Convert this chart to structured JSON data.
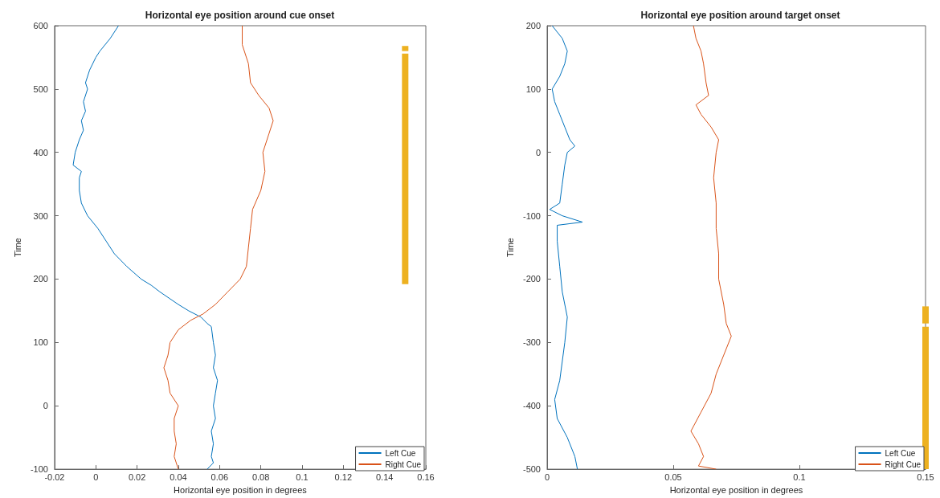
{
  "chart_data": [
    {
      "type": "line",
      "title": "Horizontal eye position around cue onset",
      "xlabel": "Horizontal eye position in degrees",
      "ylabel": "Time",
      "xlim": [
        -0.02,
        0.16
      ],
      "xticks": [
        -0.02,
        0,
        0.02,
        0.04,
        0.06,
        0.08,
        0.1,
        0.12,
        0.14,
        0.16
      ],
      "ylim": [
        -100,
        600
      ],
      "yticks": [
        -100,
        0,
        100,
        200,
        300,
        400,
        500,
        600
      ],
      "grid": false,
      "legend": "bottom right",
      "marker": "none",
      "line_style": "solid",
      "series": [
        {
          "name": "Left Cue",
          "color": "#0072bd",
          "x": [
            0.011,
            0.007,
            0.002,
            0.0,
            -0.003,
            -0.005,
            -0.004,
            -0.006,
            -0.005,
            -0.007,
            -0.006,
            -0.008,
            -0.01,
            -0.011,
            -0.007,
            -0.008,
            -0.008,
            -0.007,
            -0.004,
            0.001,
            0.005,
            0.009,
            0.015,
            0.022,
            0.027,
            0.031,
            0.04,
            0.045,
            0.051,
            0.054,
            0.056,
            0.057,
            0.058,
            0.057,
            0.059,
            0.058,
            0.057,
            0.058,
            0.056,
            0.057,
            0.056,
            0.057,
            0.054
          ],
          "values": [
            600,
            580,
            560,
            550,
            530,
            510,
            500,
            480,
            465,
            450,
            435,
            420,
            400,
            380,
            370,
            360,
            340,
            320,
            300,
            280,
            260,
            240,
            220,
            200,
            190,
            180,
            160,
            150,
            140,
            130,
            125,
            100,
            80,
            60,
            40,
            20,
            0,
            -20,
            -40,
            -60,
            -80,
            -90,
            -100
          ]
        },
        {
          "name": "Right Cue",
          "color": "#d95319",
          "x": [
            0.071,
            0.071,
            0.074,
            0.075,
            0.079,
            0.084,
            0.086,
            0.084,
            0.081,
            0.082,
            0.08,
            0.076,
            0.075,
            0.074,
            0.073,
            0.07,
            0.064,
            0.058,
            0.052,
            0.046,
            0.04,
            0.036,
            0.035,
            0.033,
            0.035,
            0.036,
            0.04,
            0.038,
            0.038,
            0.039,
            0.038,
            0.04
          ],
          "values": [
            600,
            570,
            540,
            510,
            490,
            470,
            450,
            430,
            400,
            370,
            340,
            310,
            280,
            250,
            220,
            200,
            180,
            160,
            145,
            135,
            120,
            100,
            80,
            60,
            40,
            20,
            0,
            -20,
            -40,
            -60,
            -80,
            -100
          ]
        },
        {
          "color": "#edb120",
          "x": [
            0.15,
            0.15
          ],
          "values": [
            192,
            556
          ]
        },
        {
          "color": "#edb120",
          "x": [
            0.15,
            0.15
          ],
          "values": [
            560,
            568
          ]
        }
      ]
    },
    {
      "type": "line",
      "title": "Horizontal eye position around target onset",
      "xlabel": "Horizontal eye position in degrees",
      "ylabel": "Time",
      "xlim": [
        0,
        0.15
      ],
      "xticks": [
        0,
        0.05,
        0.1,
        0.15
      ],
      "ylim": [
        -500,
        200
      ],
      "yticks": [
        -500,
        -400,
        -300,
        -200,
        -100,
        0,
        100,
        200
      ],
      "grid": false,
      "legend": "bottom right",
      "marker": "none",
      "line_style": "solid",
      "series": [
        {
          "name": "Left Cue",
          "color": "#0072bd",
          "x": [
            0.002,
            0.006,
            0.008,
            0.007,
            0.005,
            0.002,
            0.003,
            0.005,
            0.007,
            0.009,
            0.011,
            0.008,
            0.007,
            0.006,
            0.005,
            0.001,
            0.006,
            0.014,
            0.004,
            0.004,
            0.005,
            0.006,
            0.008,
            0.007,
            0.006,
            0.005,
            0.003,
            0.004,
            0.008,
            0.011,
            0.012
          ],
          "values": [
            200,
            180,
            160,
            140,
            120,
            100,
            80,
            60,
            40,
            20,
            10,
            0,
            -20,
            -50,
            -80,
            -90,
            -100,
            -110,
            -115,
            -140,
            -180,
            -220,
            -260,
            -300,
            -330,
            -360,
            -390,
            -420,
            -450,
            -480,
            -500
          ]
        },
        {
          "name": "Right Cue",
          "color": "#d95319",
          "x": [
            0.058,
            0.059,
            0.061,
            0.062,
            0.063,
            0.064,
            0.059,
            0.061,
            0.065,
            0.068,
            0.067,
            0.066,
            0.067,
            0.067,
            0.068,
            0.068,
            0.07,
            0.071,
            0.073,
            0.07,
            0.067,
            0.065,
            0.061,
            0.057,
            0.06,
            0.062,
            0.06,
            0.067
          ],
          "values": [
            200,
            180,
            160,
            140,
            110,
            90,
            75,
            60,
            40,
            20,
            0,
            -40,
            -80,
            -120,
            -160,
            -200,
            -240,
            -270,
            -290,
            -320,
            -350,
            -380,
            -410,
            -440,
            -460,
            -480,
            -495,
            -500
          ]
        },
        {
          "color": "#edb120",
          "x": [
            0.15,
            0.15
          ],
          "values": [
            -500,
            -275
          ]
        },
        {
          "color": "#edb120",
          "x": [
            0.15,
            0.15
          ],
          "values": [
            -270,
            -243
          ]
        }
      ]
    }
  ]
}
